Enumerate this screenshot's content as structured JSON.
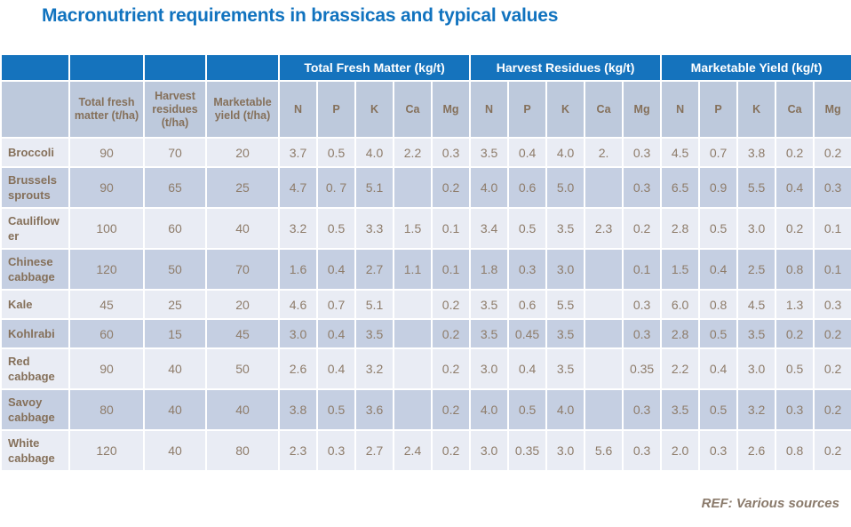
{
  "title": "Macronutrient requirements in brassicas and typical values",
  "colors": {
    "accent_blue": "#1573BD",
    "header_band_bg": "#BDC9DC",
    "row_light": "#E9ECF4",
    "row_dark": "#C5CFE2",
    "data_text": "#8E7C6A",
    "header_text": "#85705A",
    "title_text": "#1173BF"
  },
  "table": {
    "group_headers": [
      {
        "label": "Total Fresh Matter (kg/t)",
        "span": 5
      },
      {
        "label": "Harvest Residues (kg/t)",
        "span": 5
      },
      {
        "label": "Marketable Yield (kg/t)",
        "span": 5
      }
    ],
    "stub_headers": [
      "",
      "Total fresh matter (t/ha)",
      "Harvest residues (t/ha)",
      "Marketable yield (t/ha)"
    ],
    "nutrient_headers": [
      "N",
      "P",
      "K",
      "Ca",
      "Mg",
      "N",
      "P",
      "K",
      "Ca",
      "Mg",
      "N",
      "P",
      "K",
      "Ca",
      "Mg"
    ],
    "rows": [
      {
        "label": "Broccoli",
        "values": [
          "90",
          "70",
          "20",
          "3.7",
          "0.5",
          "4.0",
          "2.2",
          "0.3",
          "3.5",
          "0.4",
          "4.0",
          "2.",
          "0.3",
          "4.5",
          "0.7",
          "3.8",
          "0.2",
          "0.2"
        ]
      },
      {
        "label": "Brussels sprouts",
        "values": [
          "90",
          "65",
          "25",
          "4.7",
          "0. 7",
          "5.1",
          "",
          "0.2",
          "4.0",
          "0.6",
          "5.0",
          "",
          "0.3",
          "6.5",
          "0.9",
          "5.5",
          "0.4",
          "0.3"
        ]
      },
      {
        "label": "Cauliflower",
        "values": [
          "100",
          "60",
          "40",
          "3.2",
          "0.5",
          "3.3",
          "1.5",
          "0.1",
          "3.4",
          "0.5",
          "3.5",
          "2.3",
          "0.2",
          "2.8",
          "0.5",
          "3.0",
          "0.2",
          "0.1"
        ]
      },
      {
        "label": "Chinese cabbage",
        "values": [
          "120",
          "50",
          "70",
          "1.6",
          "0.4",
          "2.7",
          "1.1",
          "0.1",
          "1.8",
          "0.3",
          "3.0",
          "",
          "0.1",
          "1.5",
          "0.4",
          "2.5",
          "0.8",
          "0.1"
        ]
      },
      {
        "label": "Kale",
        "values": [
          "45",
          "25",
          "20",
          "4.6",
          "0.7",
          "5.1",
          "",
          "0.2",
          "3.5",
          "0.6",
          "5.5",
          "",
          "0.3",
          "6.0",
          "0.8",
          "4.5",
          "1.3",
          "0.3"
        ]
      },
      {
        "label": "Kohlrabi",
        "values": [
          "60",
          "15",
          "45",
          "3.0",
          "0.4",
          "3.5",
          "",
          "0.2",
          "3.5",
          "0.45",
          "3.5",
          "",
          "0.3",
          "2.8",
          "0.5",
          "3.5",
          "0.2",
          "0.2"
        ]
      },
      {
        "label": "Red cabbage",
        "values": [
          "90",
          "40",
          "50",
          "2.6",
          "0.4",
          "3.2",
          "",
          "0.2",
          "3.0",
          "0.4",
          "3.5",
          "",
          "0.35",
          "2.2",
          "0.4",
          "3.0",
          "0.5",
          "0.2"
        ]
      },
      {
        "label": "Savoy cabbage",
        "values": [
          "80",
          "40",
          "40",
          "3.8",
          "0.5",
          "3.6",
          "",
          "0.2",
          "4.0",
          "0.5",
          "4.0",
          "",
          "0.3",
          "3.5",
          "0.5",
          "3.2",
          "0.3",
          "0.2"
        ]
      },
      {
        "label": "White cabbage",
        "values": [
          "120",
          "40",
          "80",
          "2.3",
          "0.3",
          "2.7",
          "2.4",
          "0.2",
          "3.0",
          "0.35",
          "3.0",
          "5.6",
          "0.3",
          "2.0",
          "0.3",
          "2.6",
          "0.8",
          "0.2"
        ]
      }
    ]
  },
  "footer": {
    "ref": "REF: Various sources"
  }
}
